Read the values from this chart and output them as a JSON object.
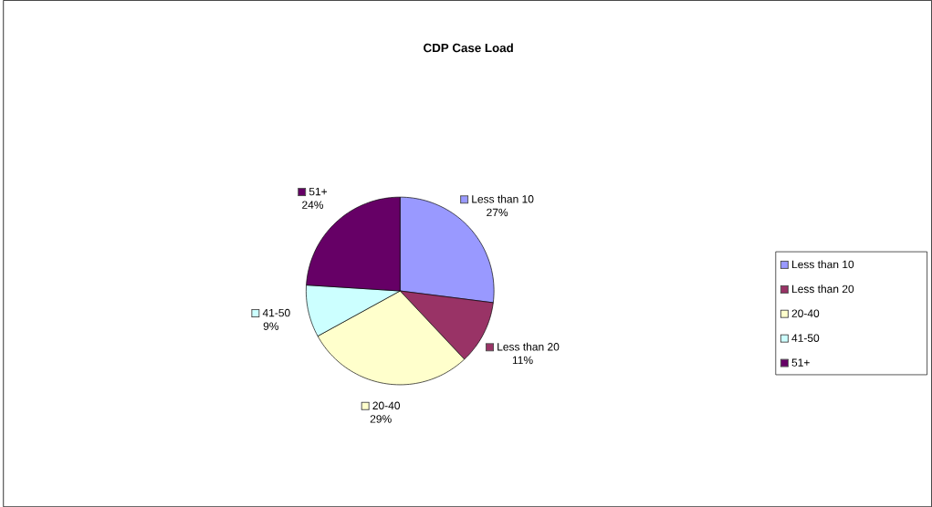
{
  "chart_data": {
    "type": "pie",
    "title": "CDP Case Load",
    "categories": [
      "Less than 10",
      "Less than 20",
      "20-40",
      "41-50",
      "51+"
    ],
    "values": [
      27,
      11,
      29,
      9,
      24
    ],
    "value_labels": [
      "27%",
      "11%",
      "29%",
      "9%",
      "24%"
    ],
    "colors": [
      "#9999ff",
      "#993366",
      "#ffffcc",
      "#ccffff",
      "#660066"
    ],
    "legend": "right"
  }
}
